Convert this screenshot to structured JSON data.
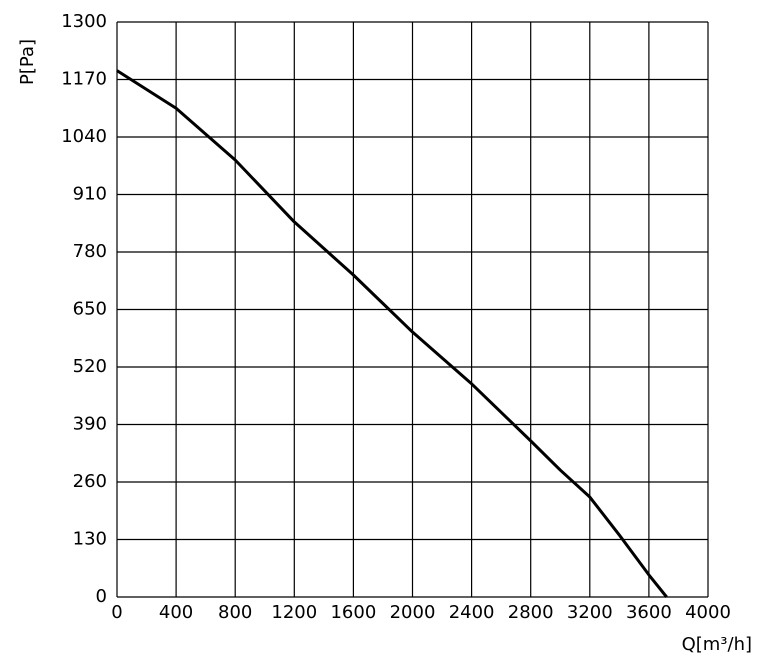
{
  "chart_data": {
    "type": "line",
    "x_label": "Q[m³/h]",
    "y_label": "P[Pa]",
    "x": [
      0,
      400,
      800,
      1200,
      1600,
      2000,
      2400,
      2800,
      3000,
      3200,
      3400,
      3600,
      3720
    ],
    "series": [
      {
        "name": "P",
        "color": "#000000",
        "values": [
          1190,
          1105,
          988,
          848,
          728,
          599,
          482,
          353,
          287,
          226,
          140,
          50,
          0
        ]
      }
    ],
    "xlim": [
      0,
      4000
    ],
    "xticks": [
      0,
      400,
      800,
      1200,
      1600,
      2000,
      2400,
      2800,
      3200,
      3600,
      4000
    ],
    "ylim": [
      0,
      1300
    ],
    "yticks": [
      0,
      130,
      260,
      390,
      520,
      650,
      780,
      910,
      1040,
      1170,
      1300
    ],
    "grid": true
  }
}
